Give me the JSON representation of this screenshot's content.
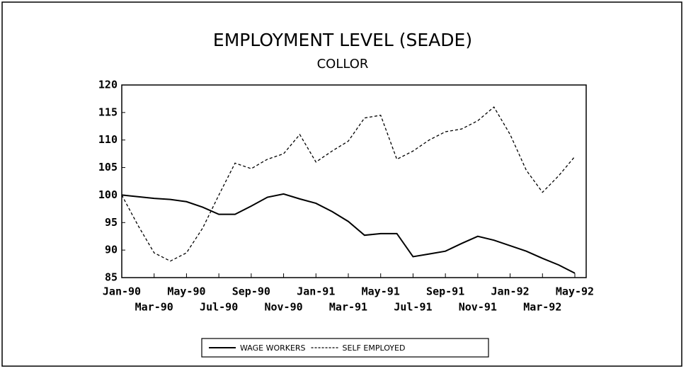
{
  "chart_data": {
    "type": "line",
    "title": "EMPLOYMENT LEVEL (SEADE)",
    "subtitle": "COLLOR",
    "categories": [
      "Jan-90",
      null,
      "Mar-90",
      null,
      "May-90",
      null,
      "Jul-90",
      null,
      "Sep-90",
      null,
      "Nov-90",
      null,
      "Jan-91",
      null,
      "Mar-91",
      null,
      "May-91",
      null,
      "Jul-91",
      null,
      "Sep-91",
      null,
      "Nov-91",
      null,
      "Jan-92",
      null,
      "Mar-92",
      null,
      "May-92"
    ],
    "series": [
      {
        "name": "WAGE WORKERS",
        "color": "#000000",
        "line_style": "solid",
        "values": [
          100,
          99.7,
          99.4,
          99.2,
          98.8,
          97.8,
          96.5,
          96.5,
          98,
          99.6,
          100.2,
          99.3,
          98.5,
          97,
          95.2,
          92.7,
          93,
          93,
          88.8,
          89.3,
          89.8,
          91.2,
          92.5,
          91.8,
          90.8,
          89.8,
          88.5,
          87.3,
          85.8
        ]
      },
      {
        "name": "SELF EMPLOYED",
        "color": "#000000",
        "line_style": "dashed",
        "values": [
          100,
          94.5,
          89.5,
          88,
          89.5,
          94,
          100,
          105.8,
          104.8,
          106.5,
          107.5,
          111,
          106,
          108,
          109.8,
          114,
          114.5,
          106.5,
          108,
          110,
          111.5,
          112,
          113.5,
          116,
          111,
          104.5,
          100.5,
          103.5,
          107
        ]
      }
    ],
    "ylim": [
      85,
      120
    ],
    "yticks": [
      85,
      90,
      95,
      100,
      105,
      110,
      115,
      120
    ],
    "grid": false,
    "legend": "bottom"
  }
}
